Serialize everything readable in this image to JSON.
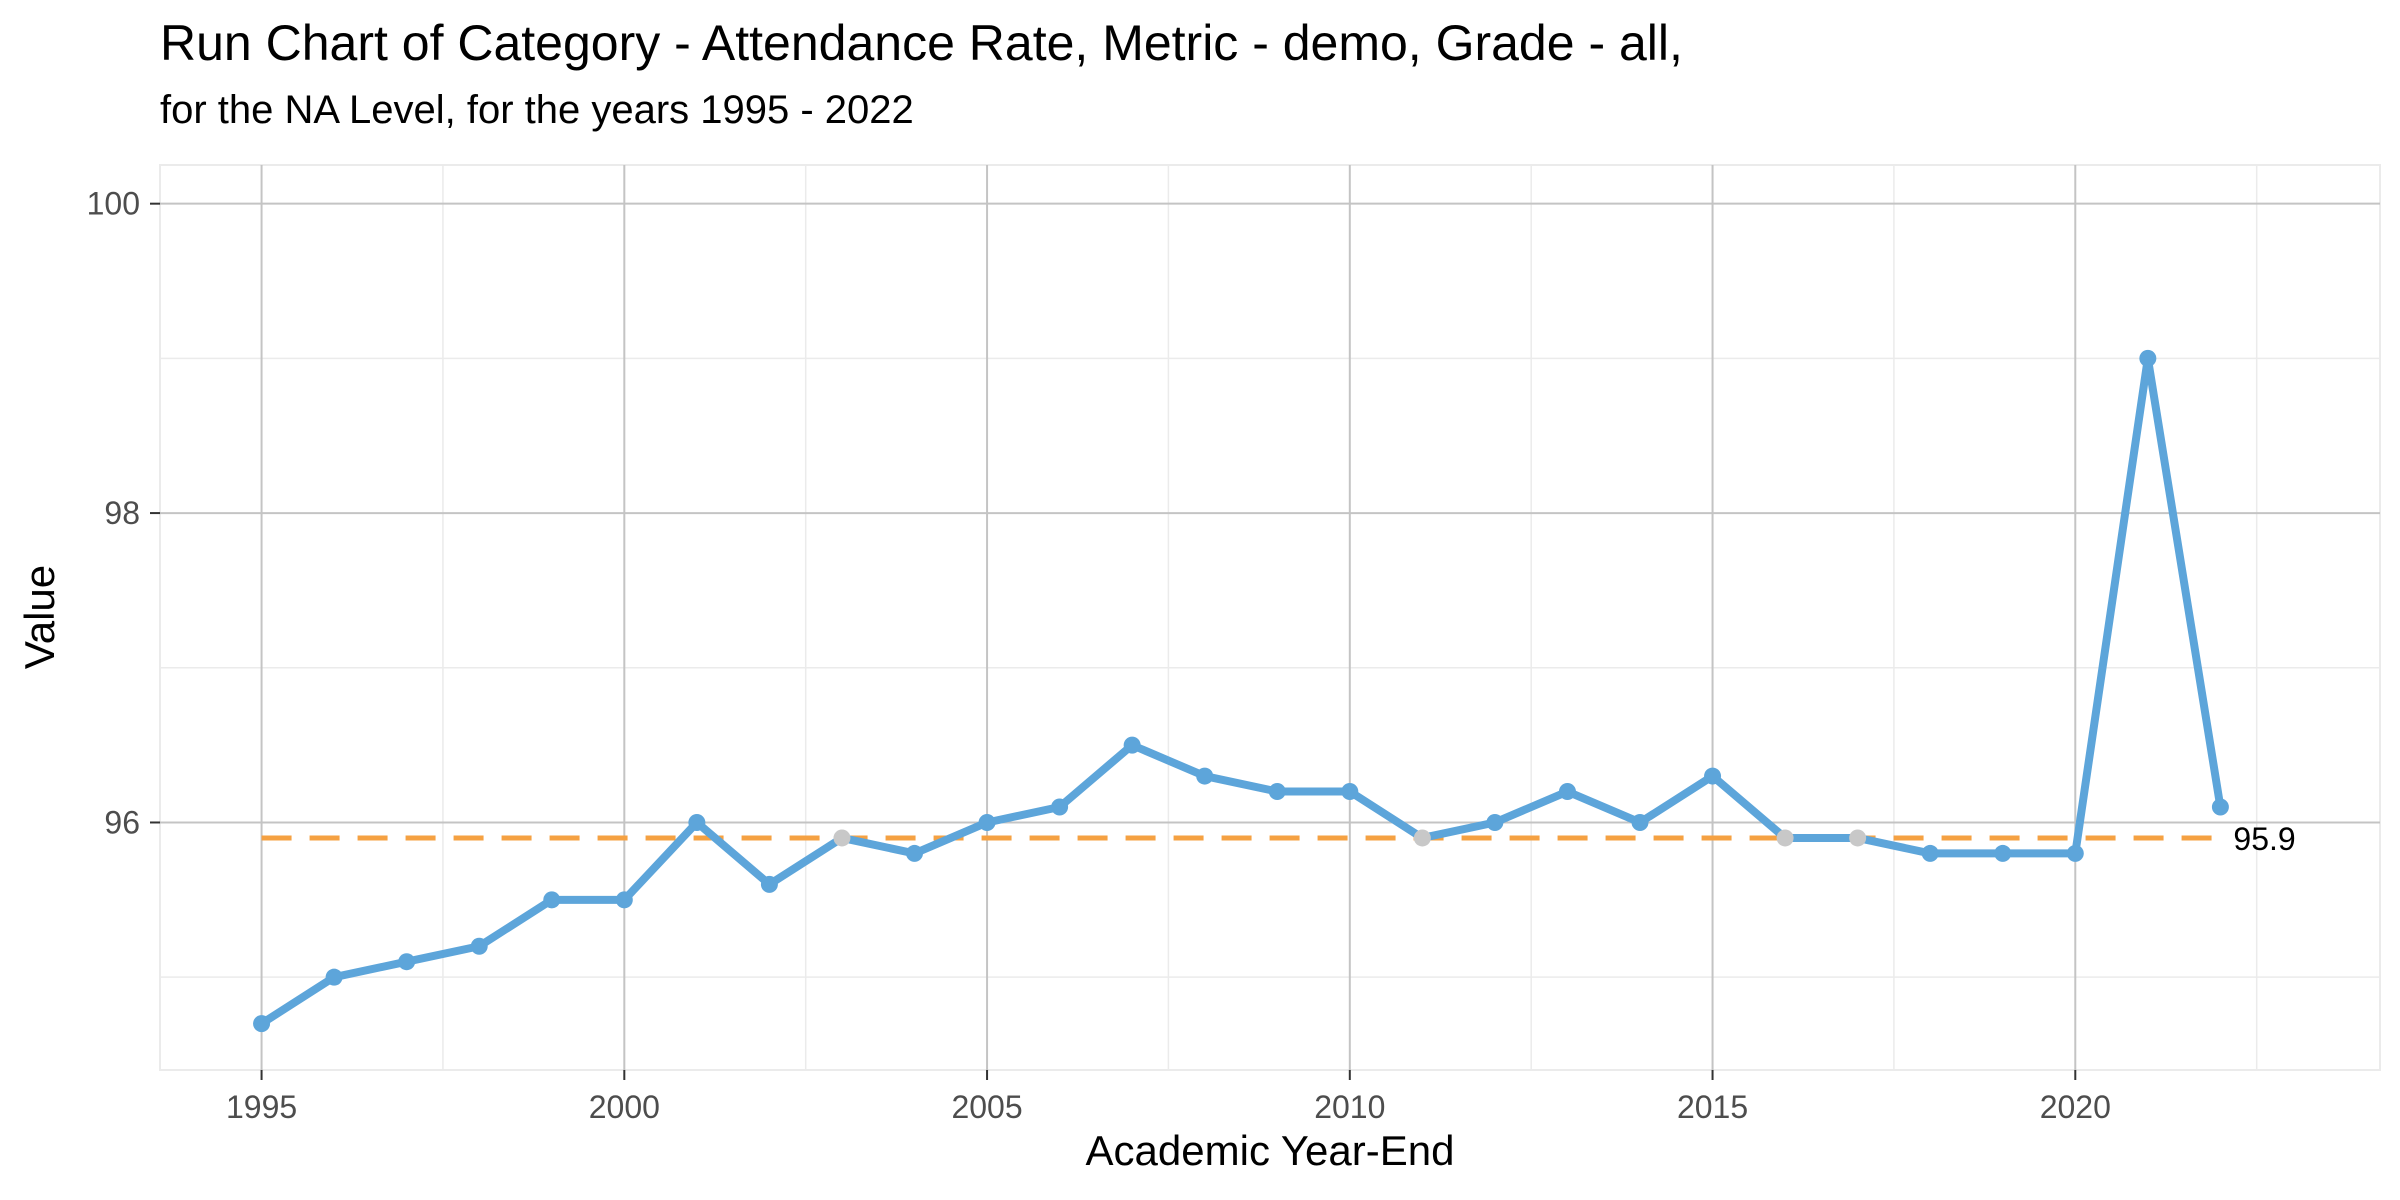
{
  "chart_data": {
    "type": "line",
    "title": "Run Chart of Category - Attendance Rate, Metric - demo, Grade - all,",
    "subtitle": "for the NA Level, for the years 1995 - 2022",
    "xlabel": "Academic Year-End",
    "ylabel": "Value",
    "xlim": [
      1993.6,
      2024.2
    ],
    "ylim": [
      94.4,
      100.25
    ],
    "x_ticks": [
      1995,
      2000,
      2005,
      2010,
      2015,
      2020
    ],
    "y_ticks": [
      96,
      98,
      100
    ],
    "grid": true,
    "legend": "none",
    "series": [
      {
        "x": [
          1995,
          1996,
          1997,
          1998,
          1999,
          2000,
          2001,
          2002,
          2003,
          2004,
          2005,
          2006,
          2007,
          2008,
          2009,
          2010,
          2011,
          2012,
          2013,
          2014,
          2015,
          2016,
          2017,
          2018,
          2019,
          2020,
          2021,
          2022
        ],
        "values": [
          94.7,
          95.0,
          95.1,
          95.2,
          95.5,
          95.5,
          96.0,
          95.6,
          95.9,
          95.8,
          96.0,
          96.1,
          96.5,
          96.3,
          96.2,
          96.2,
          95.9,
          96.0,
          96.2,
          96.0,
          96.3,
          95.9,
          95.9,
          95.8,
          95.8,
          95.8,
          99.0,
          96.1
        ],
        "color": "#5DA5DA",
        "on_median_color": "#C8C8C8"
      }
    ],
    "reference_line": {
      "value": 95.9,
      "label": "95.9",
      "x_range": [
        1995,
        2022
      ],
      "color": "#F5A142",
      "style": "dashed"
    }
  }
}
